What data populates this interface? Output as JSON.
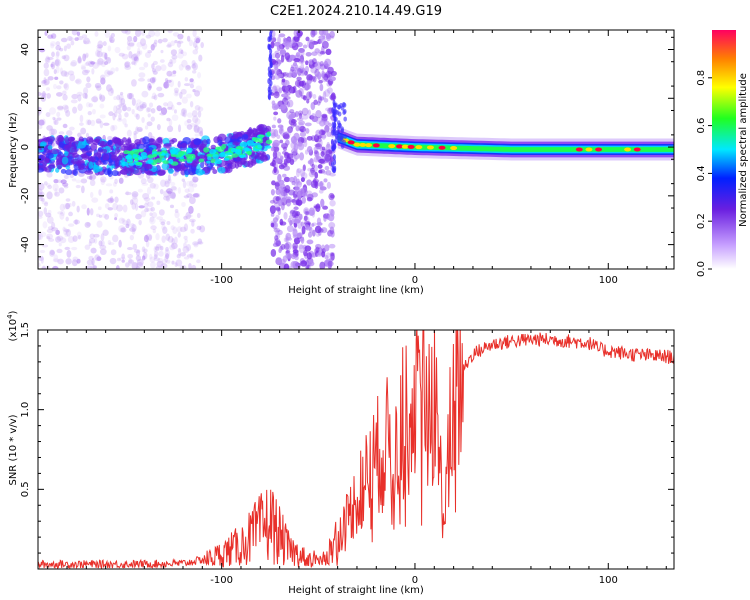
{
  "figure": {
    "title": "C2E1.2024.210.14.49.G19"
  },
  "colors": {
    "snr_line": "#e8302a",
    "spec_low": "#7b2fe0",
    "spec_mid": "#00c8ff",
    "spec_green": "#20ff20",
    "spec_high": "#ff0040",
    "background": "#ffffff"
  },
  "chart_data": [
    {
      "type": "heatmap",
      "title": "C2E1.2024.210.14.49.G19",
      "xlabel": "Height of straight line (km)",
      "ylabel": "Frequency (Hz)",
      "xlim": [
        -195,
        134
      ],
      "ylim": [
        -50,
        48
      ],
      "x_ticks": [
        -100,
        0,
        100
      ],
      "x_tick_labels": [
        "-100",
        "0",
        "100"
      ],
      "y_ticks": [
        -40,
        -20,
        0,
        20,
        40
      ],
      "y_tick_labels": [
        "-40",
        "-20",
        "0",
        "20",
        "40"
      ],
      "colorbar": {
        "label": "Normalized spectral amplitude",
        "range": [
          0,
          1
        ],
        "ticks": [
          0.0,
          0.2,
          0.4,
          0.6,
          0.8
        ],
        "tick_labels": [
          "0.0",
          "0.2",
          "0.4",
          "0.6",
          "0.8"
        ]
      },
      "main_ridge": [
        {
          "x": -195,
          "f": -3
        },
        {
          "x": -150,
          "f": -4
        },
        {
          "x": -120,
          "f": -4
        },
        {
          "x": -100,
          "f": -3
        },
        {
          "x": -85,
          "f": 0
        },
        {
          "x": -75,
          "f": 3
        },
        {
          "x": -40,
          "f": 4
        },
        {
          "x": -30,
          "f": 1
        },
        {
          "x": 0,
          "f": 0
        },
        {
          "x": 50,
          "f": -1
        },
        {
          "x": 134,
          "f": -1
        }
      ],
      "grid": false
    },
    {
      "type": "line",
      "xlabel": "Height of straight line (km)",
      "ylabel": "SNR (10 * v/v)",
      "y_multiplier": "(x10^4)",
      "xlim": [
        -195,
        134
      ],
      "ylim": [
        0,
        15000
      ],
      "x_ticks": [
        -100,
        0,
        100
      ],
      "x_tick_labels": [
        "-100",
        "0",
        "100"
      ],
      "y_ticks": [
        5000,
        10000,
        15000
      ],
      "y_tick_labels": [
        "0.5",
        "1.0",
        "1.5"
      ],
      "series": [
        {
          "values_envelope": [
            [
              -195,
              300
            ],
            [
              -150,
              300
            ],
            [
              -120,
              350
            ],
            [
              -105,
              700
            ],
            [
              -90,
              1500
            ],
            [
              -80,
              2500
            ],
            [
              -75,
              3000
            ],
            [
              -65,
              1200
            ],
            [
              -55,
              600
            ],
            [
              -45,
              900
            ],
            [
              -40,
              2000
            ],
            [
              -30,
              4500
            ],
            [
              -20,
              7000
            ],
            [
              -10,
              8500
            ],
            [
              0,
              10000
            ],
            [
              10,
              11000
            ],
            [
              15,
              3000
            ],
            [
              20,
              11500
            ],
            [
              25,
              12500
            ],
            [
              30,
              13500
            ],
            [
              40,
              14100
            ],
            [
              50,
              14300
            ],
            [
              60,
              14400
            ],
            [
              70,
              14400
            ],
            [
              80,
              14300
            ],
            [
              90,
              14200
            ],
            [
              95,
              13800
            ],
            [
              100,
              13700
            ],
            [
              110,
              13500
            ],
            [
              120,
              13400
            ],
            [
              134,
              13300
            ]
          ]
        }
      ],
      "grid": false
    }
  ]
}
